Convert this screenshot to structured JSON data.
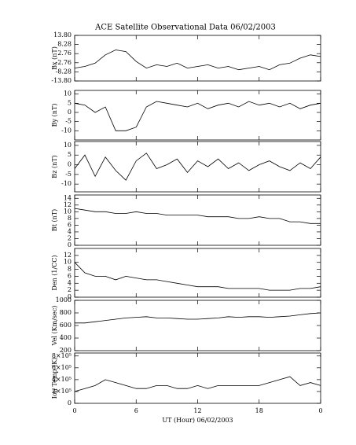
{
  "chart_data": [
    {
      "type": "line",
      "title": "ACE Satellite Observational Data   06/02/2003",
      "ylabel": "Bx (nT)",
      "color": "#000000",
      "x": [
        0,
        1,
        2,
        3,
        4,
        5,
        6,
        7,
        8,
        9,
        10,
        11,
        12,
        13,
        14,
        15,
        16,
        17,
        18,
        19,
        20,
        21,
        22,
        23,
        24
      ],
      "values": [
        -6,
        -5,
        -3,
        2,
        5,
        4,
        -2,
        -6,
        -4,
        -5,
        -3,
        -6,
        -5,
        -4,
        -6,
        -5,
        -7,
        -6,
        -5,
        -7,
        -4,
        -3,
        0,
        2,
        1
      ],
      "xlim": [
        0,
        24
      ],
      "ylim": [
        -13.8,
        13.8
      ],
      "yticks": [
        {
          "value": 13.8,
          "label": "13.80"
        },
        8.28,
        2.76,
        -2.76,
        -8.28,
        {
          "value": -13.8,
          "label": "-13.80"
        }
      ]
    },
    {
      "type": "line",
      "ylabel": "By (nT)",
      "color": "#000000",
      "x": [
        0,
        1,
        2,
        3,
        4,
        5,
        6,
        7,
        8,
        9,
        10,
        11,
        12,
        13,
        14,
        15,
        16,
        17,
        18,
        19,
        20,
        21,
        22,
        23,
        24
      ],
      "values": [
        5,
        4,
        0,
        3,
        -10,
        -10,
        -8,
        3,
        6,
        5,
        4,
        3,
        5,
        2,
        4,
        5,
        3,
        6,
        4,
        5,
        3,
        5,
        2,
        4,
        5
      ],
      "xlim": [
        0,
        24
      ],
      "ylim": [
        -15,
        12
      ],
      "yticks": [
        10,
        5,
        0,
        -5,
        -10
      ]
    },
    {
      "type": "line",
      "ylabel": "Bz (nT)",
      "color": "#000000",
      "x": [
        0,
        1,
        2,
        3,
        4,
        5,
        6,
        7,
        8,
        9,
        10,
        11,
        12,
        13,
        14,
        15,
        16,
        17,
        18,
        19,
        20,
        21,
        22,
        23,
        24
      ],
      "values": [
        -2,
        5,
        -6,
        4,
        -3,
        -8,
        2,
        6,
        -2,
        0,
        3,
        -4,
        2,
        -1,
        3,
        -2,
        1,
        -3,
        0,
        2,
        -1,
        -3,
        1,
        -2,
        4
      ],
      "xlim": [
        0,
        24
      ],
      "ylim": [
        -14,
        12
      ],
      "yticks": [
        10,
        5,
        0,
        -5,
        -10
      ]
    },
    {
      "type": "line",
      "ylabel": "Bt (nT)",
      "color": "#000000",
      "x": [
        0,
        1,
        2,
        3,
        4,
        5,
        6,
        7,
        8,
        9,
        10,
        11,
        12,
        13,
        14,
        15,
        16,
        17,
        18,
        19,
        20,
        21,
        22,
        23,
        24
      ],
      "values": [
        11,
        10.5,
        10,
        10,
        9.5,
        9.5,
        10,
        9.5,
        9.5,
        9,
        9,
        9,
        9,
        8.5,
        8.5,
        8.5,
        8,
        8,
        8.5,
        8,
        8,
        7,
        7,
        6.5,
        6.5
      ],
      "xlim": [
        0,
        24
      ],
      "ylim": [
        0,
        15
      ],
      "yticks": [
        14,
        12,
        10,
        8,
        6,
        4,
        2,
        0
      ]
    },
    {
      "type": "line",
      "ylabel": "Den (1/CC)",
      "color": "#000000",
      "x": [
        0,
        1,
        2,
        3,
        4,
        5,
        6,
        7,
        8,
        9,
        10,
        11,
        12,
        13,
        14,
        15,
        16,
        17,
        18,
        19,
        20,
        21,
        22,
        23,
        24
      ],
      "values": [
        10,
        7,
        6,
        6,
        5,
        6,
        5.5,
        5,
        5,
        4.5,
        4,
        3.5,
        3,
        3,
        3,
        2.5,
        2.5,
        2.5,
        2.5,
        2,
        2,
        2,
        2.5,
        2.5,
        3
      ],
      "xlim": [
        0,
        24
      ],
      "ylim": [
        0,
        14
      ],
      "yticks": [
        12,
        10,
        8,
        6,
        4,
        2,
        0
      ]
    },
    {
      "type": "line",
      "ylabel": "Vel (Km/sec)",
      "color": "#000000",
      "x": [
        0,
        1,
        2,
        3,
        4,
        5,
        6,
        7,
        8,
        9,
        10,
        11,
        12,
        13,
        14,
        15,
        16,
        17,
        18,
        19,
        20,
        21,
        22,
        23,
        24
      ],
      "values": [
        640,
        640,
        660,
        680,
        700,
        720,
        730,
        740,
        720,
        720,
        710,
        700,
        700,
        710,
        720,
        740,
        730,
        740,
        740,
        730,
        740,
        750,
        770,
        790,
        800
      ],
      "xlim": [
        0,
        24
      ],
      "ylim": [
        200,
        1000
      ],
      "yticks": [
        1000,
        800,
        600,
        400,
        200
      ]
    },
    {
      "type": "line",
      "ylabel": "Ion Temp (K)",
      "xlabel": "UT (Hour)  06/02/2003",
      "color": "#000000",
      "x": [
        0,
        1,
        2,
        3,
        4,
        5,
        6,
        7,
        8,
        9,
        10,
        11,
        12,
        13,
        14,
        15,
        16,
        17,
        18,
        19,
        20,
        21,
        22,
        23,
        24
      ],
      "values": [
        200000,
        250000,
        300000,
        400000,
        350000,
        300000,
        250000,
        250000,
        300000,
        300000,
        250000,
        250000,
        300000,
        250000,
        300000,
        300000,
        300000,
        300000,
        300000,
        350000,
        400000,
        450000,
        300000,
        350000,
        300000
      ],
      "xlim": [
        0,
        24
      ],
      "ylim": [
        0,
        850000
      ],
      "yticks": [
        {
          "value": 800000,
          "label": "8×10⁵"
        },
        {
          "value": 600000,
          "label": "6×10⁵"
        },
        {
          "value": 400000,
          "label": "4×10⁵"
        },
        {
          "value": 200000,
          "label": "2×10⁵"
        },
        0
      ],
      "xticks": [
        0,
        6,
        12,
        18,
        {
          "value": 24,
          "label": "0"
        }
      ]
    }
  ]
}
